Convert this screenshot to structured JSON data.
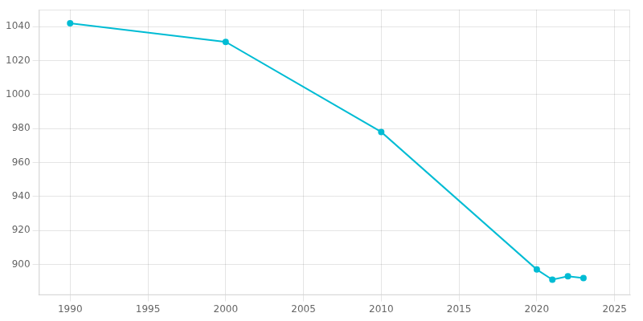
{
  "chart_data": {
    "type": "line",
    "x": [
      1990,
      2000,
      2010,
      2020,
      2021,
      2022,
      2023
    ],
    "values": [
      1042,
      1031,
      978,
      897,
      891,
      893,
      892
    ],
    "color": "#00bcd4",
    "marker": "circle",
    "xlim": [
      1988,
      2026
    ],
    "ylim": [
      882,
      1050
    ],
    "xticks": [
      1990,
      1995,
      2000,
      2005,
      2010,
      2015,
      2020,
      2025
    ],
    "yticks": [
      900,
      920,
      940,
      960,
      980,
      1000,
      1020,
      1040
    ],
    "grid": true
  }
}
